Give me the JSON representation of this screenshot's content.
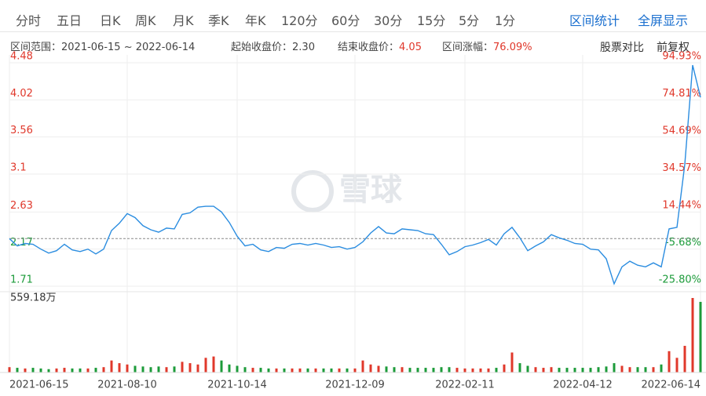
{
  "toolbar": {
    "tabs": [
      "分时",
      "五日",
      "日K",
      "周K",
      "月K",
      "季K",
      "年K",
      "120分",
      "60分",
      "30分",
      "15分",
      "5分",
      "1分"
    ],
    "actions": [
      "区间统计",
      "全屏显示"
    ]
  },
  "info": {
    "range_label": "区间范围：",
    "range": "2021-06-15 ~ 2022-06-14",
    "start_label": "起始收盘价：",
    "start": "2.30",
    "end_label": "结束收盘价：",
    "end": "4.05",
    "change_label": "区间涨幅：",
    "change": "76.09%"
  },
  "options": [
    "股票对比",
    "前复权"
  ],
  "watermark": "雪球",
  "chart_data": [
    {
      "type": "line",
      "color": "#2b8de0",
      "up_color": "#e0382b",
      "down_color": "#1c9b3a",
      "grid": true,
      "categories": [
        "2021-06-15",
        null,
        null,
        null,
        null,
        null,
        null,
        null,
        null,
        null,
        null,
        null,
        null,
        null,
        null,
        "2021-08-10",
        null,
        null,
        null,
        null,
        null,
        null,
        null,
        null,
        null,
        null,
        null,
        null,
        null,
        "2021-10-14",
        null,
        null,
        null,
        null,
        null,
        null,
        null,
        null,
        null,
        null,
        null,
        null,
        null,
        null,
        "2021-12-09",
        null,
        null,
        null,
        null,
        null,
        null,
        null,
        null,
        null,
        null,
        null,
        null,
        null,
        "2022-02-11",
        null,
        null,
        null,
        null,
        null,
        null,
        null,
        null,
        null,
        null,
        null,
        null,
        null,
        null,
        "2022-04-12",
        null,
        null,
        null,
        null,
        null,
        null,
        null,
        null,
        null,
        null,
        null,
        null,
        null,
        null,
        "2022-06-14"
      ],
      "values": [
        2.3,
        2.21,
        2.24,
        2.23,
        2.17,
        2.12,
        2.15,
        2.23,
        2.16,
        2.14,
        2.17,
        2.11,
        2.17,
        2.4,
        2.49,
        2.61,
        2.56,
        2.46,
        2.41,
        2.38,
        2.43,
        2.42,
        2.6,
        2.62,
        2.69,
        2.7,
        2.7,
        2.63,
        2.5,
        2.33,
        2.21,
        2.23,
        2.16,
        2.14,
        2.19,
        2.18,
        2.23,
        2.24,
        2.22,
        2.24,
        2.22,
        2.19,
        2.2,
        2.17,
        2.19,
        2.26,
        2.37,
        2.45,
        2.37,
        2.36,
        2.42,
        2.41,
        2.4,
        2.36,
        2.35,
        2.23,
        2.1,
        2.14,
        2.2,
        2.22,
        2.25,
        2.29,
        2.22,
        2.36,
        2.44,
        2.31,
        2.15,
        2.21,
        2.26,
        2.35,
        2.31,
        2.28,
        2.24,
        2.23,
        2.17,
        2.16,
        2.05,
        1.74,
        1.95,
        2.02,
        1.97,
        1.95,
        2.0,
        1.95,
        2.42,
        2.44,
        3.22,
        4.45,
        4.05
      ],
      "ylim": [
        1.71,
        4.48
      ],
      "yticks": [
        4.48,
        4.02,
        3.56,
        3.1,
        2.63,
        2.17,
        1.71
      ],
      "y2lim": [
        -25.8,
        94.93
      ],
      "y2ticks": [
        {
          "value": 94.93,
          "label": "94.93%"
        },
        {
          "value": 74.81,
          "label": "74.81%"
        },
        {
          "value": 54.69,
          "label": "54.69%"
        },
        {
          "value": 34.57,
          "label": "34.57%"
        },
        {
          "value": 14.44,
          "label": "14.44%"
        },
        {
          "value": -5.68,
          "label": "-5.68%"
        },
        {
          "value": -25.8,
          "label": "-25.80%"
        }
      ]
    },
    {
      "type": "bar",
      "values": [
        40,
        35,
        30,
        35,
        30,
        25,
        30,
        35,
        30,
        30,
        30,
        35,
        40,
        90,
        70,
        60,
        50,
        45,
        40,
        45,
        40,
        45,
        80,
        70,
        60,
        110,
        120,
        90,
        60,
        50,
        40,
        35,
        35,
        30,
        30,
        30,
        30,
        30,
        30,
        30,
        30,
        30,
        30,
        30,
        30,
        90,
        60,
        50,
        45,
        40,
        40,
        35,
        35,
        35,
        35,
        40,
        40,
        35,
        30,
        30,
        30,
        30,
        35,
        60,
        150,
        70,
        50,
        40,
        35,
        40,
        35,
        35,
        35,
        35,
        35,
        40,
        45,
        70,
        50,
        40,
        40,
        40,
        40,
        60,
        160,
        110,
        200,
        559.18,
        530
      ],
      "ylim": [
        0,
        559.18
      ],
      "yticks": [
        {
          "value": 559.18,
          "label": "559.18万"
        }
      ]
    }
  ]
}
